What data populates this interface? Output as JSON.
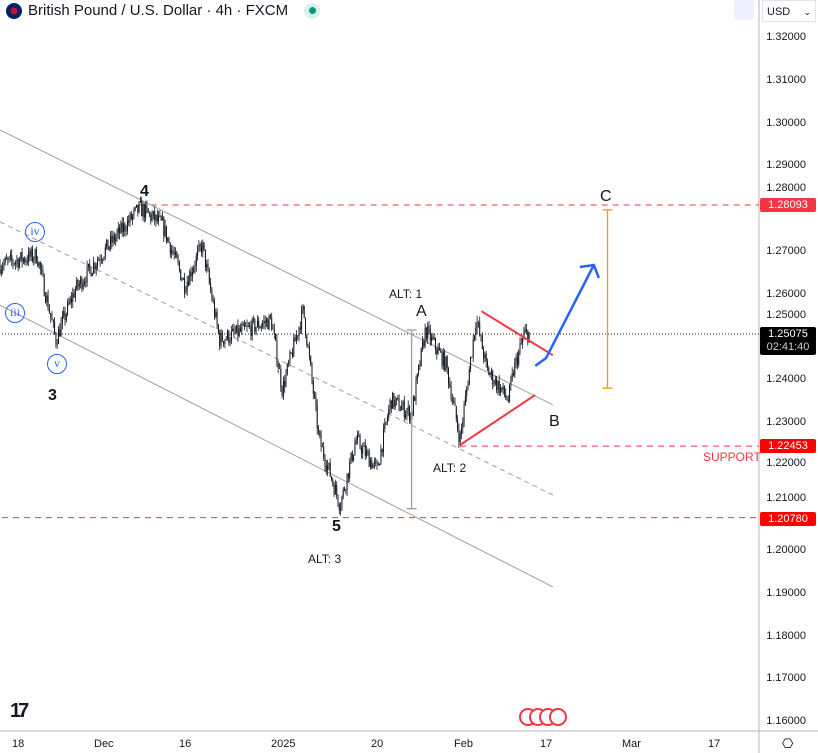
{
  "header": {
    "title": "British Pound / U.S. Dollar · 4h · FXCM",
    "currency": "USD"
  },
  "price_axis": {
    "ticks": [
      "1.32000",
      "1.31000",
      "1.30000",
      "1.29000",
      "1.28000",
      "1.27000",
      "1.26000",
      "1.25000",
      "1.24000",
      "1.23000",
      "1.22000",
      "1.21000",
      "1.20000",
      "1.19000",
      "1.18000",
      "1.17000",
      "1.16000"
    ],
    "badges": {
      "resistance": "1.28093",
      "last": "1.25075",
      "countdown": "02:41:40",
      "support": "1.22453",
      "low": "1.20780"
    }
  },
  "time_axis": [
    "18",
    "Dec",
    "16",
    "2025",
    "20",
    "Feb",
    "17",
    "Mar",
    "17"
  ],
  "annotations": {
    "w4": "4",
    "iv": "iv",
    "iii": "iii",
    "v": "v",
    "w3": "3",
    "alt1": "ALT: 1",
    "A": "A",
    "w5": "5",
    "alt3": "ALT: 3",
    "alt2": "ALT: 2",
    "B": "B",
    "C": "C",
    "support": "SUPPORT"
  },
  "colors": {
    "up": "#131722",
    "channel": "#9e9e9e",
    "red": "#f23645",
    "blue": "#2962ff",
    "orange": "#ff9800"
  },
  "chart_data": {
    "type": "candlestick",
    "symbol": "GBPUSD",
    "timeframe": "4h",
    "ylim": [
      1.155,
      1.325
    ],
    "price_path": [
      [
        "2024-11-15",
        1.2669
      ],
      [
        "2024-11-21",
        1.2692
      ],
      [
        "2024-11-24",
        1.2494
      ],
      [
        "2024-11-27",
        1.261
      ],
      [
        "2024-12-01",
        1.269
      ],
      [
        "2024-12-08",
        1.2802
      ],
      [
        "2024-12-12",
        1.2763
      ],
      [
        "2024-12-16",
        1.2622
      ],
      [
        "2024-12-19",
        1.2716
      ],
      [
        "2024-12-22",
        1.2494
      ],
      [
        "2024-12-31",
        1.254
      ],
      [
        "2025-01-02",
        1.2377
      ],
      [
        "2025-01-06",
        1.2564
      ],
      [
        "2025-01-09",
        1.226
      ],
      [
        "2025-01-13",
        1.2108
      ],
      [
        "2025-01-16",
        1.226
      ],
      [
        "2025-01-20",
        1.219
      ],
      [
        "2025-01-22",
        1.2353
      ],
      [
        "2025-01-25",
        1.232
      ],
      [
        "2025-01-27",
        1.2517
      ],
      [
        "2025-01-30",
        1.2435
      ],
      [
        "2025-02-01",
        1.226
      ],
      [
        "2025-02-04",
        1.2545
      ],
      [
        "2025-02-06",
        1.2424
      ],
      [
        "2025-02-10",
        1.2353
      ],
      [
        "2025-02-11",
        1.2424
      ],
      [
        "2025-02-13",
        1.2508
      ]
    ],
    "levels": [
      {
        "price": 1.28093,
        "color": "red",
        "from": "2024-12-08"
      },
      {
        "price": 1.22453,
        "color": "red",
        "from": "2025-02-01"
      },
      {
        "price": 1.2078,
        "color": "red",
        "from": "2024-11-05"
      },
      {
        "price": 1.25075,
        "color": "dotted",
        "from": "2024-11-05"
      }
    ],
    "channel": [
      [
        [
          "2024-11-05",
          1.2985
        ],
        [
          "2025-02-18",
          1.2342
        ]
      ],
      [
        [
          "2024-11-05",
          1.277
        ],
        [
          "2025-02-18",
          1.2131
        ]
      ],
      [
        [
          "2024-11-05",
          1.2575
        ],
        [
          "2025-02-18",
          1.1916
        ]
      ]
    ],
    "triangle": [
      [
        [
          "2025-02-05",
          1.2561
        ],
        [
          "2025-02-18",
          1.2458
        ]
      ],
      [
        [
          "2025-02-01",
          1.2248
        ],
        [
          "2025-02-15",
          1.2365
        ]
      ]
    ],
    "projection": [
      [
        "2025-02-15",
        1.2433
      ],
      [
        "2025-02-17",
        1.2451
      ],
      [
        "2025-02-24",
        1.2669
      ]
    ],
    "ranges": [
      {
        "date": "2025-02-26",
        "from": 1.2381,
        "to": 1.2798,
        "color": "orange"
      },
      {
        "date": "2025-01-25",
        "from": 1.2517,
        "to": 1.2099,
        "color": "gray"
      }
    ]
  }
}
